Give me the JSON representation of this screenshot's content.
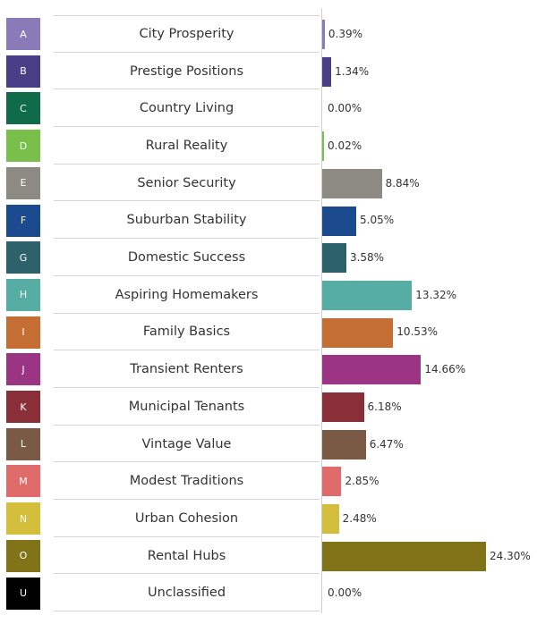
{
  "chart_data": {
    "type": "bar",
    "orientation": "horizontal",
    "title": "",
    "xlabel": "",
    "ylabel": "",
    "xlim": [
      0,
      24.3
    ],
    "grid": false,
    "value_suffix": "%",
    "rows": [
      {
        "code": "A",
        "name": "City Prosperity",
        "value": 0.39,
        "label": "0.39%",
        "color": "#8b7ab8"
      },
      {
        "code": "B",
        "name": "Prestige Positions",
        "value": 1.34,
        "label": "1.34%",
        "color": "#4a3f86"
      },
      {
        "code": "C",
        "name": "Country Living",
        "value": 0.0,
        "label": "0.00%",
        "color": "#0f6b4a"
      },
      {
        "code": "D",
        "name": "Rural Reality",
        "value": 0.02,
        "label": "0.02%",
        "color": "#78c04a"
      },
      {
        "code": "E",
        "name": "Senior Security",
        "value": 8.84,
        "label": "8.84%",
        "color": "#8c8a82"
      },
      {
        "code": "F",
        "name": "Suburban Stability",
        "value": 5.05,
        "label": "5.05%",
        "color": "#1c4a8f"
      },
      {
        "code": "G",
        "name": "Domestic Success",
        "value": 3.58,
        "label": "3.58%",
        "color": "#2e626a"
      },
      {
        "code": "H",
        "name": "Aspiring Homemakers",
        "value": 13.32,
        "label": "13.32%",
        "color": "#55ada4"
      },
      {
        "code": "I",
        "name": "Family Basics",
        "value": 10.53,
        "label": "10.53%",
        "color": "#c46e33"
      },
      {
        "code": "J",
        "name": "Transient Renters",
        "value": 14.66,
        "label": "14.66%",
        "color": "#9c3484"
      },
      {
        "code": "K",
        "name": "Municipal Tenants",
        "value": 6.18,
        "label": "6.18%",
        "color": "#8a2e38"
      },
      {
        "code": "L",
        "name": "Vintage Value",
        "value": 6.47,
        "label": "6.47%",
        "color": "#7a5a44"
      },
      {
        "code": "M",
        "name": "Modest Traditions",
        "value": 2.85,
        "label": "2.85%",
        "color": "#e06b6b"
      },
      {
        "code": "N",
        "name": "Urban Cohesion",
        "value": 2.48,
        "label": "2.48%",
        "color": "#d3bf3c"
      },
      {
        "code": "O",
        "name": "Rental Hubs",
        "value": 24.3,
        "label": "24.30%",
        "color": "#807318"
      },
      {
        "code": "U",
        "name": "Unclassified",
        "value": 0.0,
        "label": "0.00%",
        "color": "#000000"
      }
    ]
  }
}
